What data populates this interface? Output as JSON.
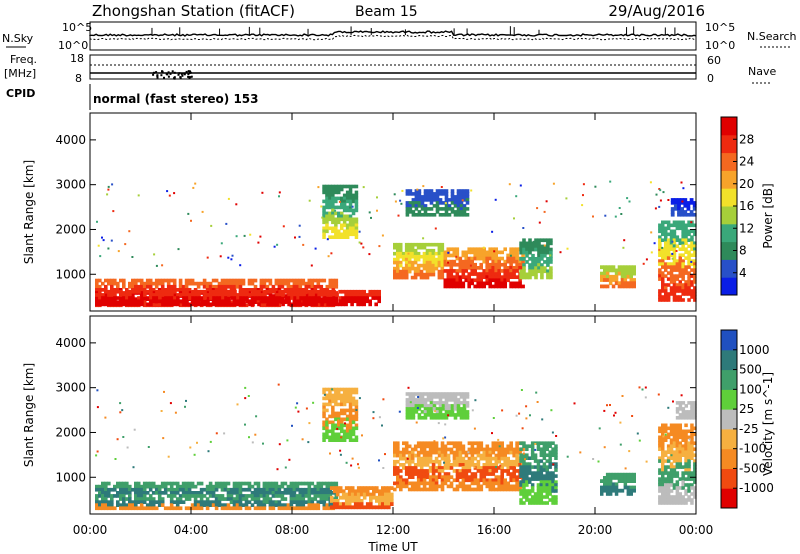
{
  "header": {
    "station": "Zhongshan Station (fitACF)",
    "beam": "Beam 15",
    "date": "29/Aug/2016"
  },
  "strip_labels": {
    "nsky": "N.Sky",
    "freq_line1": "Freq.",
    "freq_line2": "[MHz]",
    "cpid": "CPID",
    "nsearch": "N.Search",
    "nave": "Nave",
    "left_top": "10^5",
    "left_bottom": "10^0",
    "right_top": "10^5",
    "right_bottom": "10^0",
    "freq_top": "18",
    "freq_bottom": "8",
    "nave_top": "60",
    "nave_bottom": "0",
    "cpid_text": "normal (fast stereo) 153"
  },
  "colors": {
    "power": [
      "#0a1ee6",
      "#2850c8",
      "#2e8a5a",
      "#3aa87a",
      "#a6cf3a",
      "#f2e12a",
      "#f7a32a",
      "#f46820",
      "#ee2a10",
      "#e00000"
    ],
    "velocity": [
      "#e00000",
      "#f04a10",
      "#f58a22",
      "#f6b040",
      "#bcbcbc",
      "#5fcf3a",
      "#3f9f6a",
      "#2e7a7a",
      "#2050c0"
    ]
  },
  "chart_data": [
    {
      "type": "heatmap",
      "name": "power",
      "ylabel": "Slant Range [km]",
      "yticks": [
        1000,
        2000,
        3000,
        4000
      ],
      "ylim": [
        180,
        4600
      ],
      "xticks": [
        "00:00",
        "04:00",
        "08:00",
        "12:00",
        "16:00",
        "20:00",
        "00:00"
      ],
      "xlim": [
        0,
        24
      ],
      "colorbar": {
        "label": "Power [dB]",
        "ticks": [
          "4",
          "8",
          "12",
          "16",
          "20",
          "24",
          "28"
        ]
      },
      "blobs": [
        {
          "t0": 0.2,
          "t1": 9.8,
          "r0": 280,
          "r1": 900,
          "levels": [
            7,
            8,
            9,
            9,
            8
          ]
        },
        {
          "t0": 0.2,
          "t1": 11.5,
          "r0": 300,
          "r1": 650,
          "levels": [
            8,
            9,
            9
          ]
        },
        {
          "t0": 12.0,
          "t1": 14.0,
          "r0": 900,
          "r1": 1700,
          "levels": [
            4,
            5,
            6,
            7
          ]
        },
        {
          "t0": 14.0,
          "t1": 17.2,
          "r0": 700,
          "r1": 1600,
          "levels": [
            6,
            7,
            8,
            9
          ]
        },
        {
          "t0": 17.0,
          "t1": 18.3,
          "r0": 900,
          "r1": 1800,
          "levels": [
            2,
            3,
            4
          ]
        },
        {
          "t0": 12.5,
          "t1": 15.0,
          "r0": 2300,
          "r1": 2900,
          "levels": [
            1,
            2
          ]
        },
        {
          "t0": 9.2,
          "t1": 10.6,
          "r0": 1800,
          "r1": 3000,
          "levels": [
            2,
            3,
            4,
            5
          ]
        },
        {
          "t0": 20.2,
          "t1": 21.6,
          "r0": 700,
          "r1": 1200,
          "levels": [
            4,
            6,
            7
          ]
        },
        {
          "t0": 22.5,
          "t1": 24.0,
          "r0": 400,
          "r1": 2200,
          "levels": [
            3,
            5,
            7,
            8
          ]
        },
        {
          "t0": 23.0,
          "t1": 24.0,
          "r0": 2300,
          "r1": 2700,
          "levels": [
            0,
            1
          ]
        }
      ]
    },
    {
      "type": "heatmap",
      "name": "velocity",
      "ylabel": "Slant Range [km]",
      "yticks": [
        1000,
        2000,
        3000,
        4000
      ],
      "ylim": [
        180,
        4600
      ],
      "xticks": [
        "00:00",
        "04:00",
        "08:00",
        "12:00",
        "16:00",
        "20:00",
        "00:00"
      ],
      "xlim": [
        0,
        24
      ],
      "xlabel": "Time UT",
      "colorbar": {
        "label": "Velocity [m s^-1]",
        "ticks": [
          "-1000",
          "-500",
          "-100",
          "-25",
          "25",
          "100",
          "500",
          "1000"
        ]
      },
      "blobs": [
        {
          "t0": 0.2,
          "t1": 9.8,
          "r0": 280,
          "r1": 900,
          "levels": [
            6,
            7,
            6,
            7,
            2
          ]
        },
        {
          "t0": 9.5,
          "t1": 12.0,
          "r0": 300,
          "r1": 800,
          "levels": [
            2,
            3,
            1
          ]
        },
        {
          "t0": 12.0,
          "t1": 17.2,
          "r0": 700,
          "r1": 1800,
          "levels": [
            2,
            3,
            1,
            2
          ]
        },
        {
          "t0": 17.0,
          "t1": 18.5,
          "r0": 400,
          "r1": 1800,
          "levels": [
            6,
            7,
            5
          ]
        },
        {
          "t0": 20.2,
          "t1": 21.6,
          "r0": 600,
          "r1": 1100,
          "levels": [
            6,
            7
          ]
        },
        {
          "t0": 22.5,
          "t1": 24.0,
          "r0": 400,
          "r1": 2200,
          "levels": [
            2,
            3,
            6,
            4
          ]
        },
        {
          "t0": 12.5,
          "t1": 15.0,
          "r0": 2300,
          "r1": 2900,
          "levels": [
            4,
            5
          ]
        },
        {
          "t0": 9.2,
          "t1": 10.6,
          "r0": 1800,
          "r1": 3000,
          "levels": [
            3,
            2,
            5
          ]
        },
        {
          "t0": 23.2,
          "t1": 24.0,
          "r0": 2300,
          "r1": 2700,
          "levels": [
            4
          ]
        }
      ]
    }
  ]
}
